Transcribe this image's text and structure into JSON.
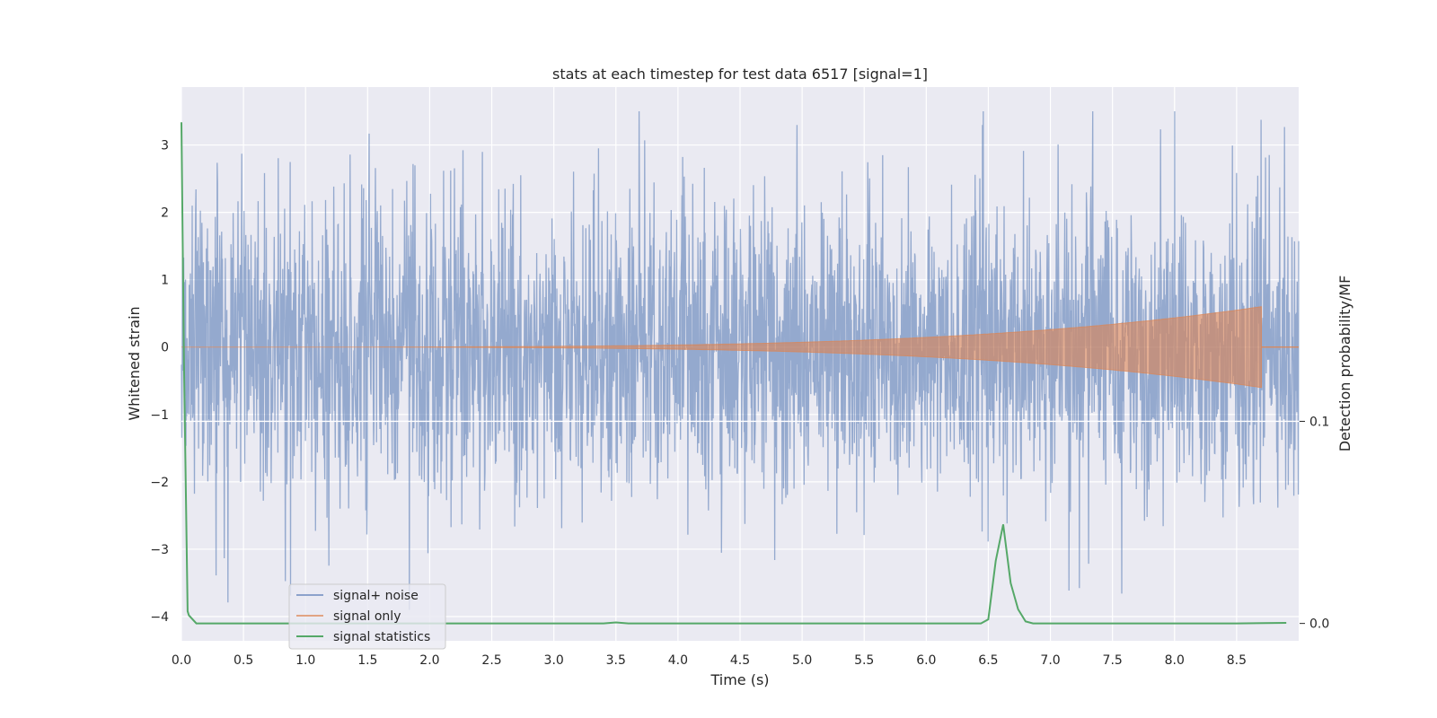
{
  "chart_data": {
    "type": "line",
    "title": "stats at each timestep for test data 6517 [signal=1]",
    "xlabel": "Time (s)",
    "ylabel": "Whitened strain",
    "ylabel_right": "Detection probability/MF",
    "xlim": [
      0.0,
      9.0
    ],
    "ylim": [
      -4.36,
      3.86
    ],
    "ylim_right": [
      -0.0086,
      0.2654
    ],
    "x_ticks": [
      "0.0",
      "0.5",
      "1.0",
      "1.5",
      "2.0",
      "2.5",
      "3.0",
      "3.5",
      "4.0",
      "4.5",
      "5.0",
      "5.5",
      "6.0",
      "6.5",
      "7.0",
      "7.5",
      "8.0",
      "8.5"
    ],
    "y_ticks": [
      "3",
      "2",
      "1",
      "0",
      "−1",
      "−2",
      "−3",
      "−4"
    ],
    "y_ticks_right": [
      "0.1",
      "0.0"
    ],
    "grid": true,
    "legend_position": "lower-left",
    "series": [
      {
        "name": "signal+ noise",
        "color": "#4c72b0",
        "kind": "noise",
        "duration": 9.0,
        "std": 1.0
      },
      {
        "name": "signal only",
        "color": "#dd8452",
        "kind": "chirp",
        "start": 0.0,
        "end": 8.7,
        "peak_amplitude": 0.6
      },
      {
        "name": "signal statistics",
        "color": "#55a868",
        "axis": "right",
        "x": [
          0.0,
          0.02,
          0.05,
          0.06,
          0.12,
          0.5,
          1.0,
          2.0,
          3.0,
          3.4,
          3.5,
          3.6,
          4.0,
          5.0,
          6.0,
          6.44,
          6.5,
          6.56,
          6.62,
          6.68,
          6.74,
          6.8,
          6.86,
          7.0,
          8.0,
          8.5,
          8.9
        ],
        "y": [
          0.248,
          0.13,
          0.006,
          0.004,
          0.0,
          0.0,
          0.0,
          0.0,
          0.0,
          0.0,
          0.0005,
          0.0,
          0.0,
          0.0,
          0.0,
          0.0,
          0.002,
          0.031,
          0.049,
          0.02,
          0.007,
          0.001,
          0.0,
          0.0,
          0.0,
          0.0,
          0.0003
        ]
      }
    ]
  }
}
